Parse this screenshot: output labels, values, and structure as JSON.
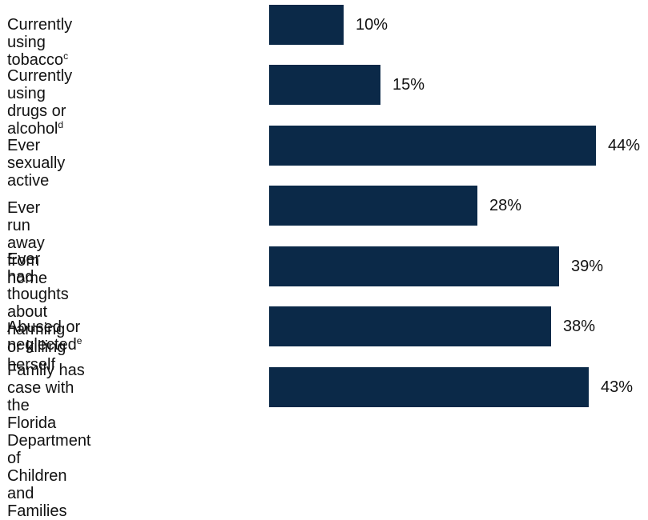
{
  "chart_data": {
    "type": "bar",
    "orientation": "horizontal",
    "bar_color": "#0b2948",
    "xlim": [
      0,
      44
    ],
    "categories": [
      {
        "lines": [
          "Currently using tobacco"
        ],
        "sup": "c"
      },
      {
        "lines": [
          "Currently using drugs or",
          "alcohol"
        ],
        "sup": "d"
      },
      {
        "lines": [
          "Ever sexually active"
        ],
        "sup": ""
      },
      {
        "lines": [
          "Ever run away from home"
        ],
        "sup": ""
      },
      {
        "lines": [
          "Ever had thoughts about",
          "harming or killing herself"
        ],
        "sup": ""
      },
      {
        "lines": [
          "Abused or neglected"
        ],
        "sup": "e"
      },
      {
        "lines": [
          "Family has case with the",
          "Florida Department of",
          "Children and Families"
        ],
        "sup": ""
      }
    ],
    "values": [
      10,
      15,
      44,
      28,
      39,
      38,
      43
    ],
    "value_labels": [
      "10%",
      "15%",
      "44%",
      "28%",
      "39%",
      "38%",
      "43%"
    ]
  }
}
